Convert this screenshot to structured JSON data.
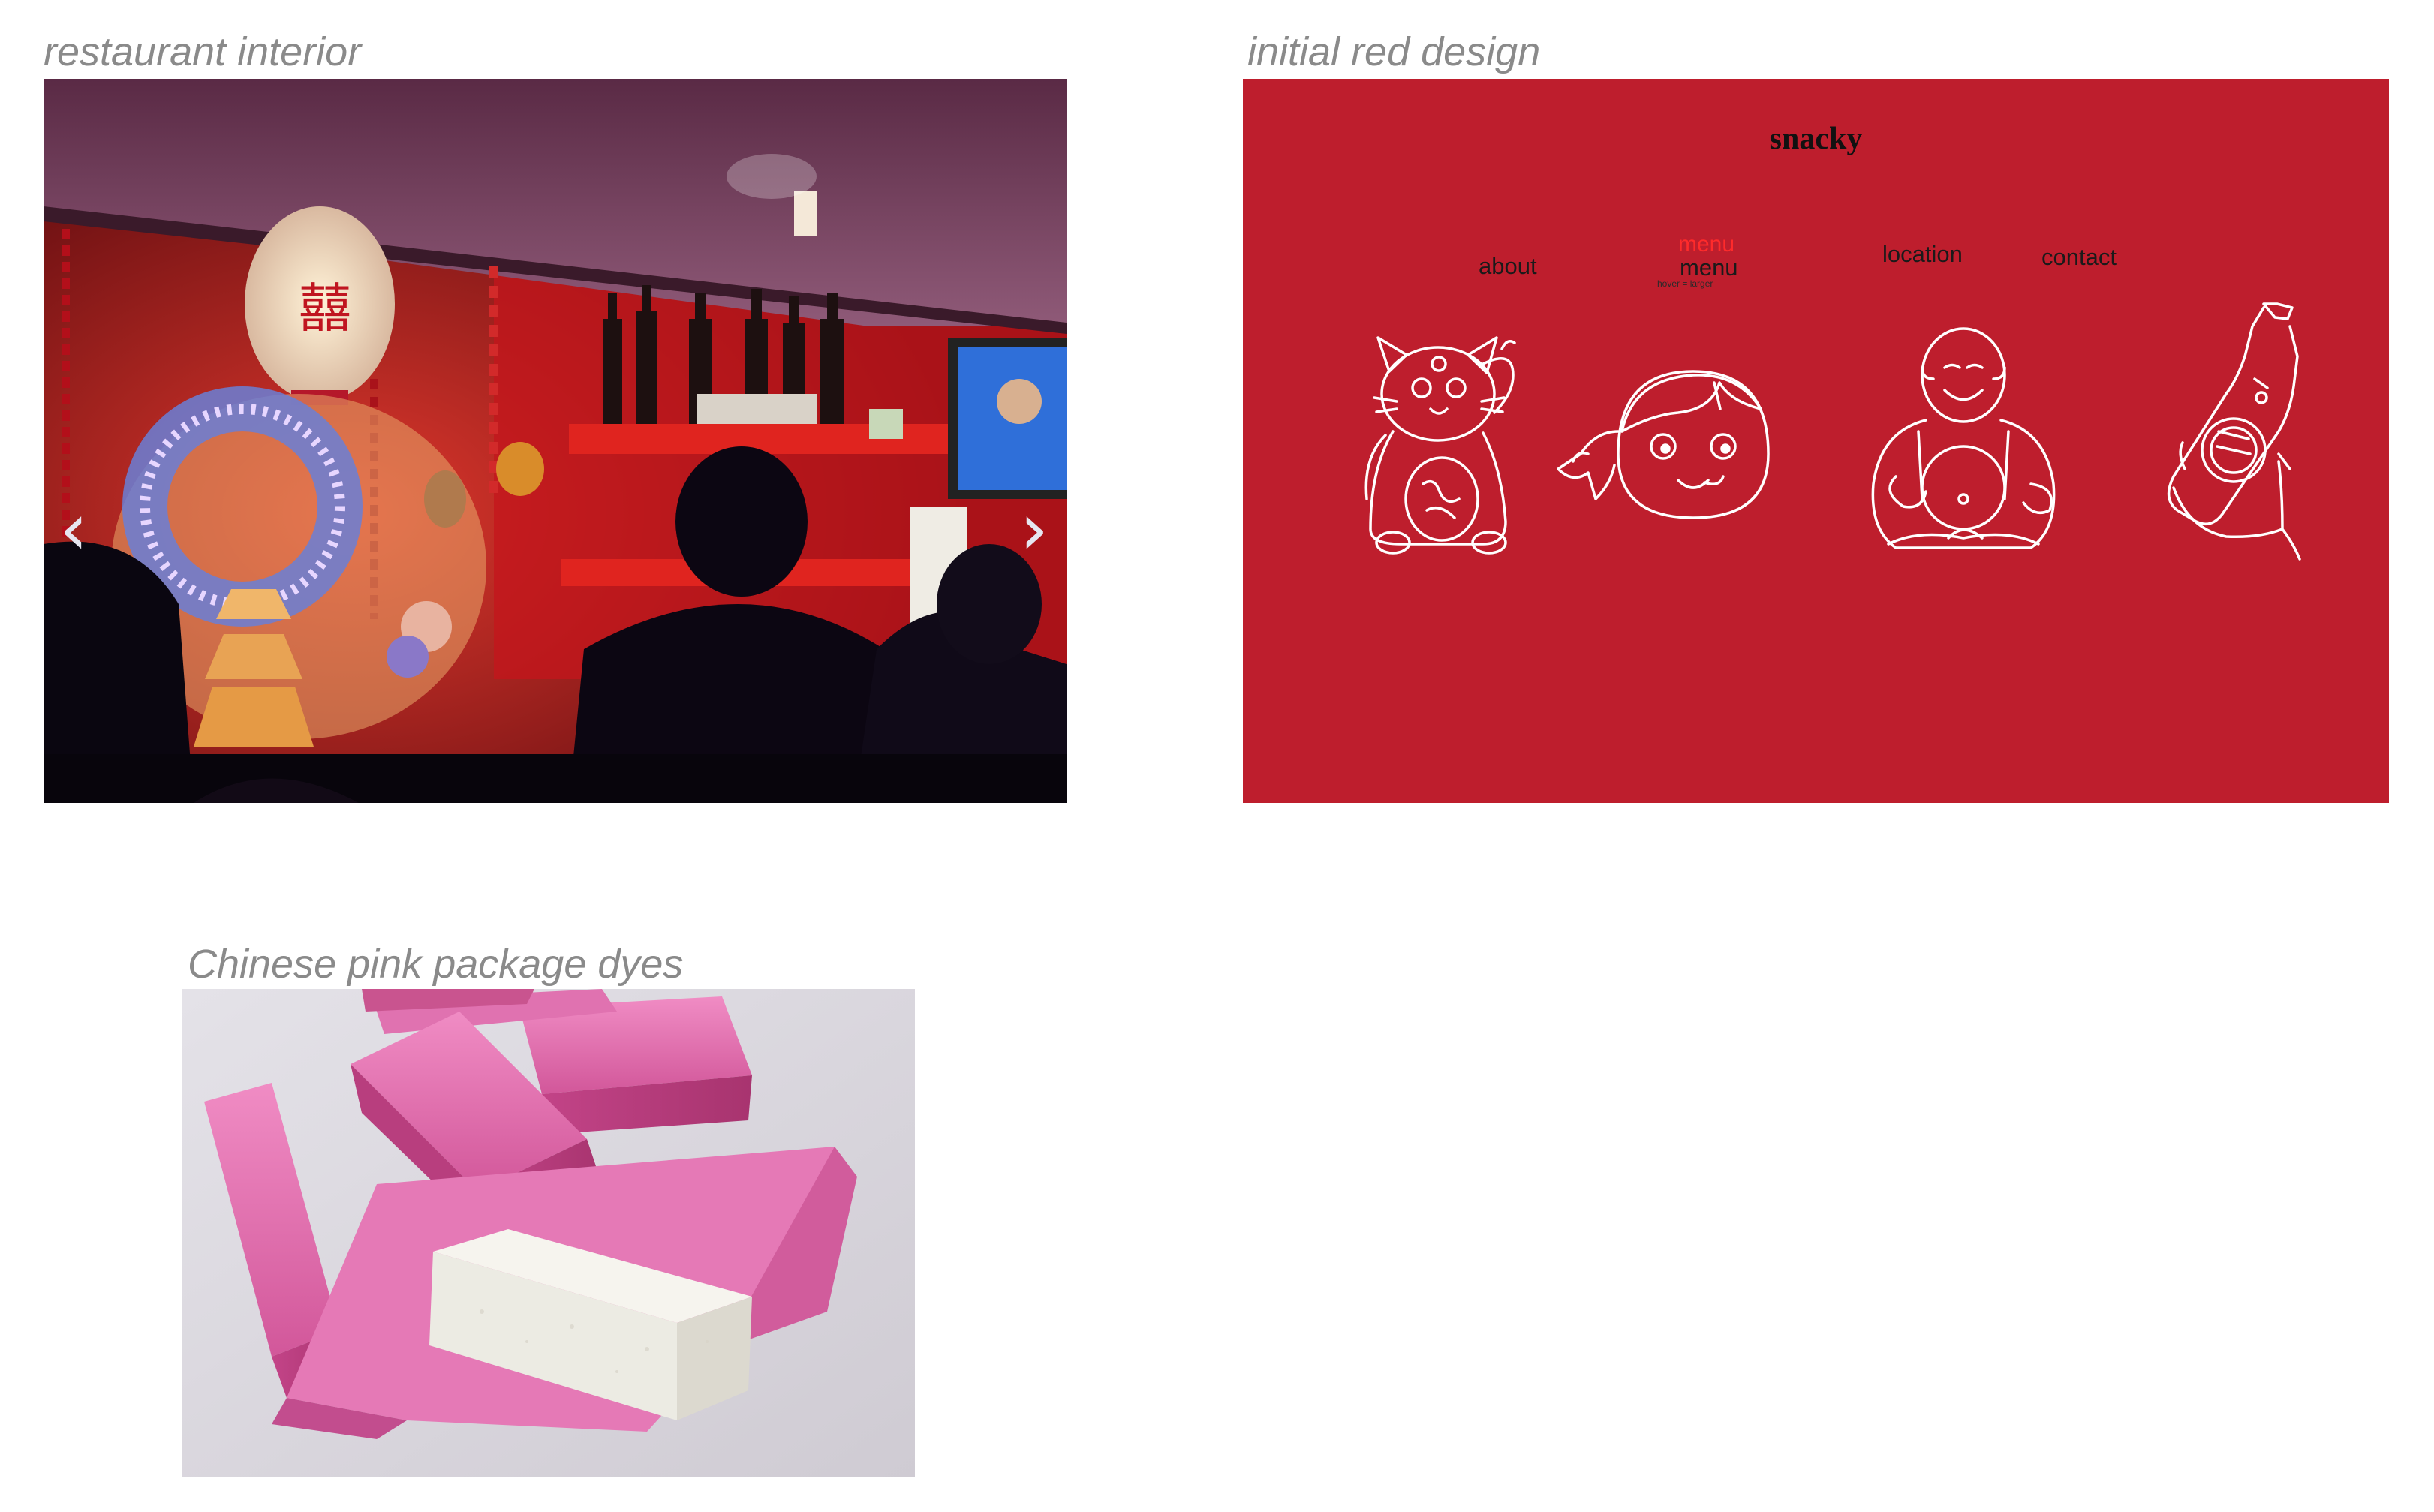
{
  "panels": [
    {
      "id": "restaurant",
      "caption": "restaurant interior"
    },
    {
      "id": "red-design",
      "caption": "initial red design"
    },
    {
      "id": "pink-dyes",
      "caption": "Chinese pink package dyes"
    }
  ],
  "carousel": {
    "prev_glyph": "‹",
    "next_glyph": "›"
  },
  "mockup": {
    "title": "snacky",
    "nav": [
      "about",
      "menu",
      "location",
      "contact"
    ],
    "hover_label": "menu",
    "hover_note": "hover = larger",
    "illustrations": [
      "lucky-cat-icon",
      "peko-girl-icon",
      "laughing-buddha-icon",
      "tsingtao-bottle-icon"
    ],
    "background_color": "#be1e2d",
    "line_color": "#ffffff"
  },
  "colors": {
    "caption": "#8a8a8a",
    "page": "#ffffff"
  }
}
